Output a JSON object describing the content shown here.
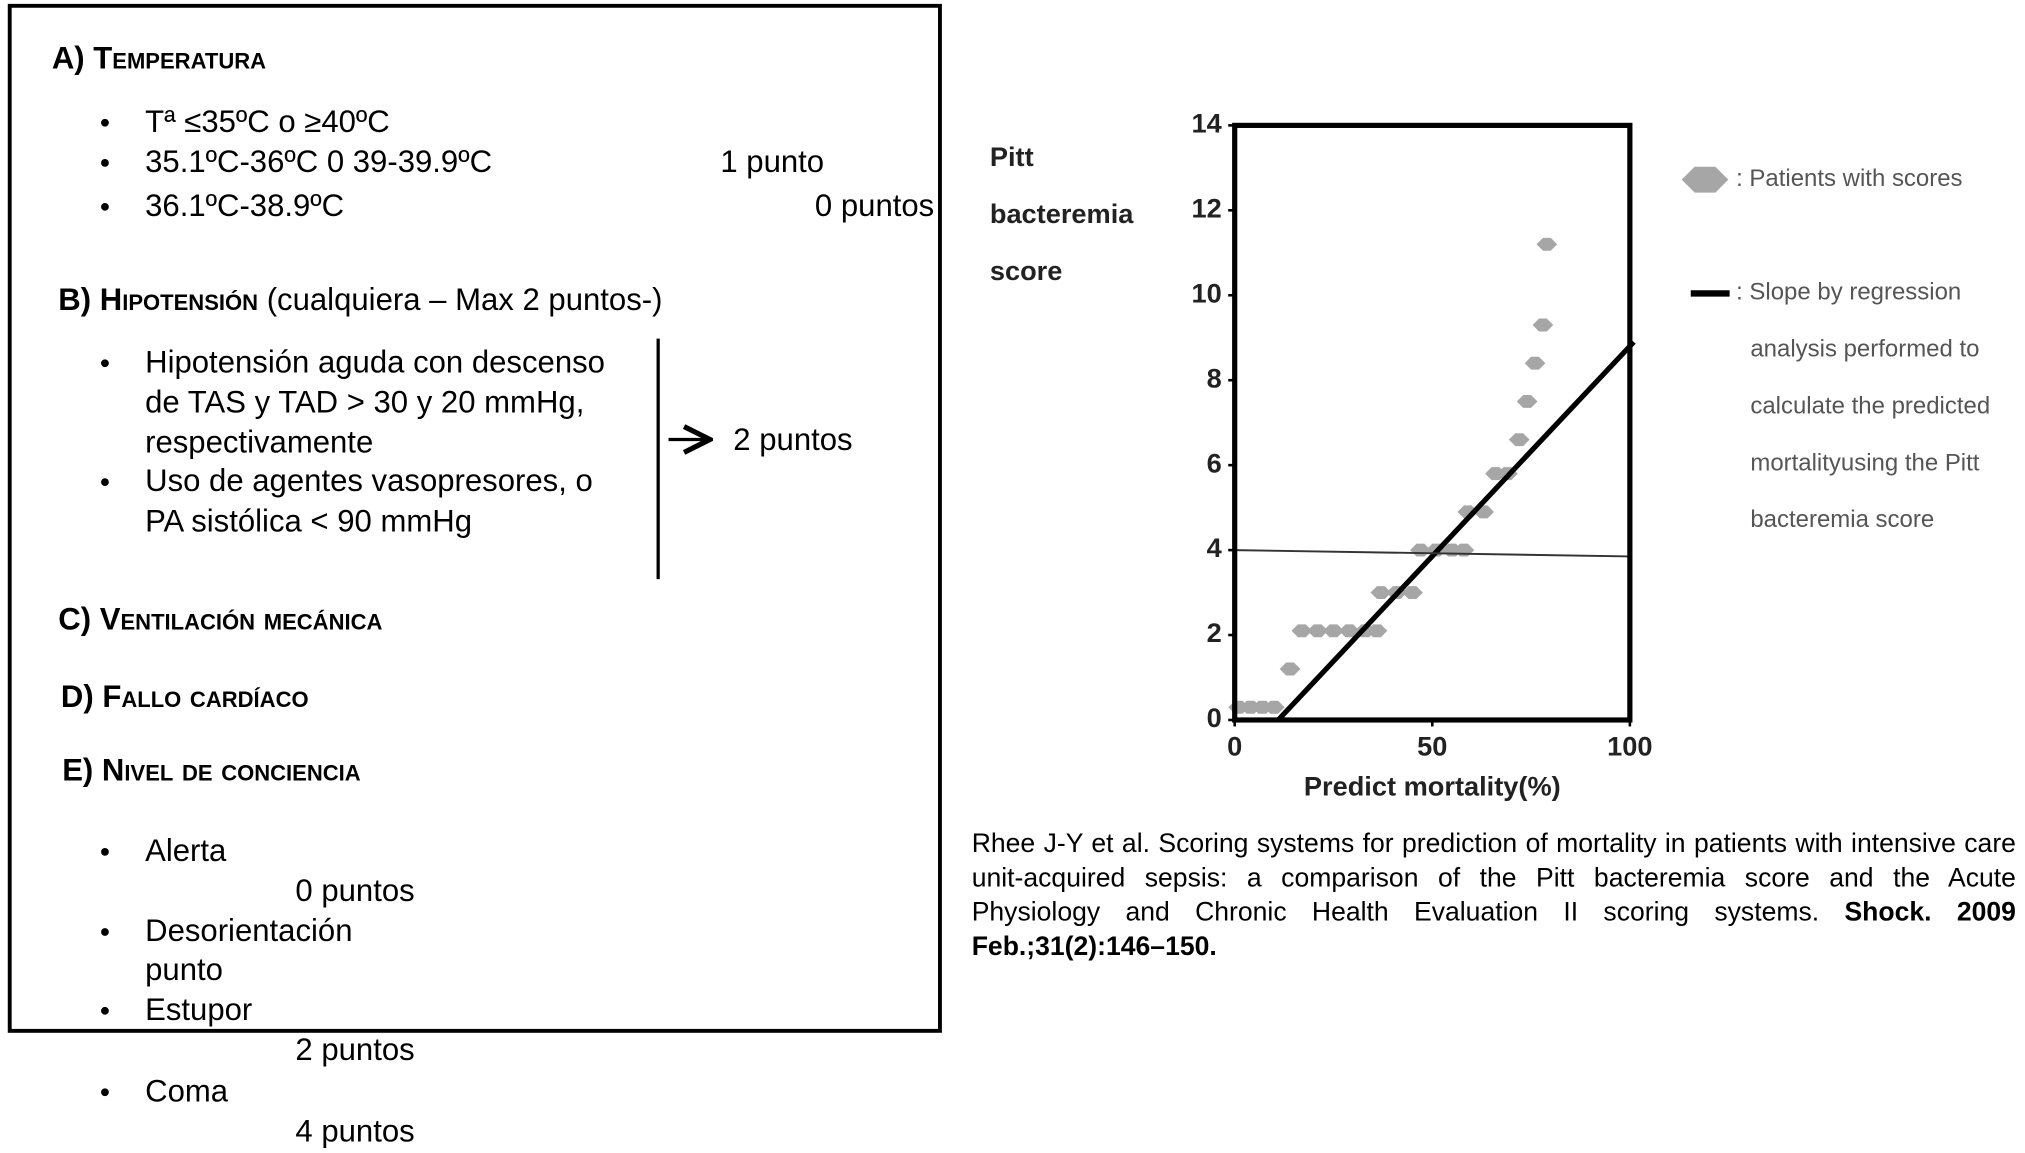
{
  "slide": {
    "sections": [
      {
        "title": "A) Temperatura",
        "items": [
          {
            "lines": [
              "Tª ≤35ºC o ≥40ºC"
            ]
          },
          {
            "lines": [
              "35.1ºC-36ºC 0 39-39.9ºC"
            ],
            "points": "1 punto"
          },
          {
            "lines": [
              "36.1ºC-38.9ºC"
            ],
            "points": "0 puntos"
          }
        ]
      },
      {
        "title": "B) Hipotensión",
        "note": "(cualquiera – Max 2 puntos-)",
        "items": [
          {
            "lines": [
              "Hipotensión aguda con descenso",
              "de TAS y TAD > 30 y 20 mmHg,",
              "respectivamente"
            ]
          },
          {
            "lines": [
              "Uso de agentes vasopresores, o",
              "PA sistólica < 90 mmHg"
            ]
          }
        ],
        "points": "2 puntos"
      },
      {
        "title": "C) Ventilación mecánica"
      },
      {
        "title": "D) Fallo cardíaco"
      },
      {
        "title": "E) Nivel de conciencia",
        "items": [
          {
            "lines": [
              "Alerta"
            ],
            "points": "0 puntos"
          },
          {
            "lines": [
              "Desorientación"
            ],
            "points": "punto"
          },
          {
            "lines": [
              "Estupor"
            ],
            "points": "2 puntos"
          },
          {
            "lines": [
              "Coma"
            ],
            "points": "4 puntos"
          }
        ]
      }
    ],
    "citation": {
      "text": "Rhee J-Y et al. Scoring systems for prediction of mortality in patients with intensive care unit-acquired sepsis: a comparison of the Pitt bacteremia score and the Acute Physiology and Chronic Health Evaluation II scoring systems.",
      "source": "Shock. 2009 Feb.;31(2):146–150."
    }
  },
  "chart_data": {
    "type": "scatter",
    "ylabel": [
      "Pitt",
      "bacteremia",
      "score"
    ],
    "xlabel": "Predict mortality(%)",
    "xlim": [
      0,
      100
    ],
    "ylim": [
      0,
      14
    ],
    "xticks": [
      0,
      50,
      100
    ],
    "yticks": [
      0,
      2,
      4,
      6,
      8,
      10,
      12,
      14
    ],
    "series": [
      {
        "name": ": Patients with scores",
        "color": "#a6a6a6",
        "x": [
          1,
          4,
          7,
          10,
          14,
          17,
          21,
          25,
          29,
          33,
          36,
          37,
          41,
          45,
          47,
          51,
          55,
          58,
          59,
          63,
          66,
          69,
          72,
          74,
          76,
          78,
          79
        ],
        "y": [
          0.3,
          0.3,
          0.3,
          0.3,
          1.2,
          2.1,
          2.1,
          2.1,
          2.1,
          2.1,
          2.1,
          3.0,
          3.0,
          3.0,
          4.0,
          4.0,
          4.0,
          4.0,
          4.9,
          4.9,
          5.8,
          5.8,
          6.6,
          7.5,
          8.4,
          9.3,
          11.2
        ]
      }
    ],
    "lines": [
      {
        "name": [
          ": Slope by regression",
          "analysis performed to",
          "calculate the predicted",
          "mortalityusing the Pitt",
          "bacteremia score"
        ],
        "color": "#000000",
        "x": [
          11,
          101
        ],
        "y": [
          0,
          8.9
        ]
      },
      {
        "color": "#333333",
        "x": [
          0,
          100
        ],
        "y": [
          4,
          3.85
        ]
      }
    ]
  }
}
